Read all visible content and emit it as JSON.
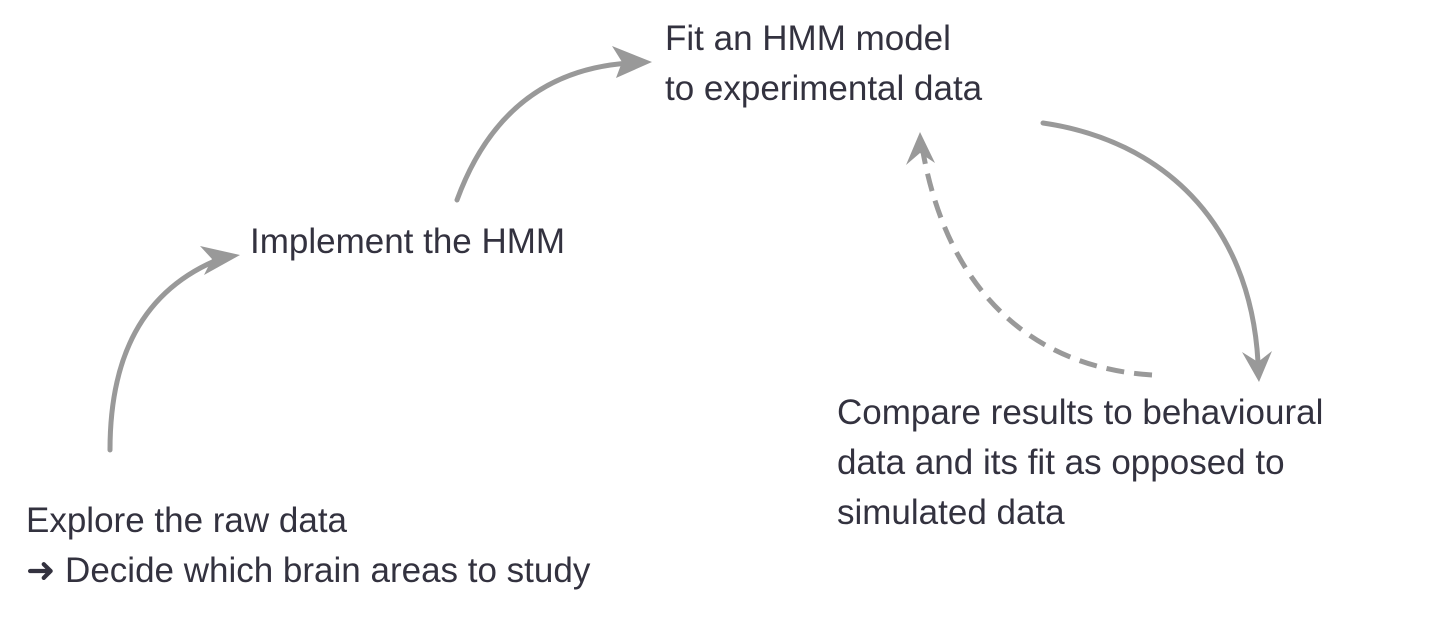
{
  "colors": {
    "text": "#33323f",
    "arrow": "#999999"
  },
  "steps": {
    "explore": {
      "line1": "Explore the raw data",
      "line2": "➜ Decide which brain areas to study"
    },
    "implement": {
      "line1": "Implement the HMM"
    },
    "fit": {
      "line1": "Fit an HMM model",
      "line2": "to experimental data"
    },
    "compare": {
      "line1": "Compare results to behavioural",
      "line2": "data and its fit as opposed to",
      "line3": "simulated data"
    }
  },
  "arrows": [
    {
      "name": "arrow-explore-to-implement",
      "style": "solid"
    },
    {
      "name": "arrow-implement-to-fit",
      "style": "solid"
    },
    {
      "name": "arrow-fit-to-compare",
      "style": "solid"
    },
    {
      "name": "arrow-compare-to-fit",
      "style": "dashed"
    }
  ]
}
